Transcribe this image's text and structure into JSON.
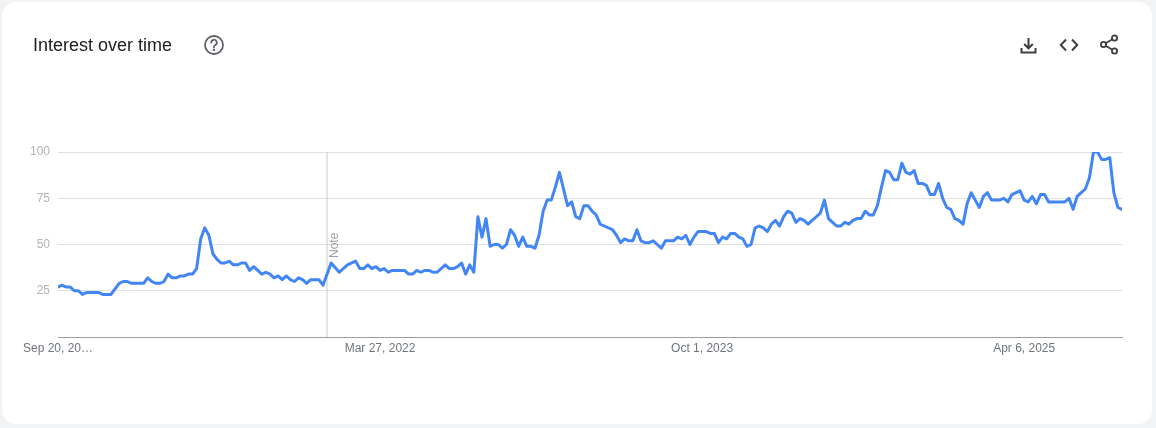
{
  "chart_data": {
    "type": "line",
    "title": "Interest over time",
    "x": [
      "2020-09-20",
      "2020-09-27",
      "2020-10-04",
      "2020-10-11",
      "2020-10-18",
      "2020-10-25",
      "2020-11-01",
      "2020-11-08",
      "2020-11-29",
      "2020-12-06",
      "2020-12-20",
      "2021-01-03",
      "2021-01-10",
      "2021-01-17",
      "2021-01-24",
      "2021-02-14",
      "2021-02-21",
      "2021-02-28",
      "2021-03-07",
      "2021-03-14",
      "2021-03-21",
      "2021-03-28",
      "2021-04-04",
      "2021-04-11",
      "2021-04-18",
      "2021-04-25",
      "2021-05-02",
      "2021-05-09",
      "2021-05-16",
      "2021-05-23",
      "2021-05-30",
      "2021-06-06",
      "2021-06-13",
      "2021-06-20",
      "2021-06-27",
      "2021-07-04",
      "2021-07-11",
      "2021-07-18",
      "2021-07-25",
      "2021-08-01",
      "2021-08-08",
      "2021-08-15",
      "2021-08-22",
      "2021-08-29",
      "2021-09-05",
      "2021-09-12",
      "2021-09-19",
      "2021-09-26",
      "2021-10-03",
      "2021-10-10",
      "2021-10-17",
      "2021-10-24",
      "2021-10-31",
      "2021-11-07",
      "2021-11-14",
      "2021-11-21",
      "2021-11-28",
      "2021-12-12",
      "2021-12-19",
      "2022-01-02",
      "2022-01-16",
      "2022-01-30",
      "2022-02-13",
      "2022-02-20",
      "2022-02-27",
      "2022-03-06",
      "2022-03-13",
      "2022-03-20",
      "2022-03-27",
      "2022-04-03",
      "2022-04-10",
      "2022-04-17",
      "2022-05-08",
      "2022-05-15",
      "2022-05-22",
      "2022-05-29",
      "2022-06-05",
      "2022-06-12",
      "2022-06-19",
      "2022-06-26",
      "2022-07-03",
      "2022-07-17",
      "2022-07-24",
      "2022-07-31",
      "2022-08-07",
      "2022-08-14",
      "2022-08-21",
      "2022-08-28",
      "2022-09-04",
      "2022-09-11",
      "2022-09-18",
      "2022-09-25",
      "2022-10-02",
      "2022-10-09",
      "2022-10-16",
      "2022-10-23",
      "2022-10-30",
      "2022-11-06",
      "2022-11-13",
      "2022-11-20",
      "2022-11-27",
      "2022-12-04",
      "2022-12-11",
      "2022-12-18",
      "2022-12-25",
      "2023-01-01",
      "2023-01-08",
      "2023-01-15",
      "2023-01-22",
      "2023-01-29",
      "2023-02-05",
      "2023-02-12",
      "2023-02-19",
      "2023-02-26",
      "2023-03-05",
      "2023-03-12",
      "2023-03-19",
      "2023-03-26",
      "2023-04-02",
      "2023-04-09",
      "2023-04-16",
      "2023-04-30",
      "2023-05-07",
      "2023-05-14",
      "2023-05-21",
      "2023-05-28",
      "2023-06-04",
      "2023-06-11",
      "2023-06-18",
      "2023-06-25",
      "2023-07-02",
      "2023-07-09",
      "2023-07-16",
      "2023-07-23",
      "2023-07-30",
      "2023-08-06",
      "2023-08-13",
      "2023-08-20",
      "2023-08-27",
      "2023-09-03",
      "2023-09-10",
      "2023-09-17",
      "2023-09-24",
      "2023-10-01",
      "2023-10-08",
      "2023-10-15",
      "2023-10-22",
      "2023-10-29",
      "2023-11-05",
      "2023-11-12",
      "2023-11-19",
      "2023-11-26",
      "2023-12-03",
      "2023-12-10",
      "2023-12-17",
      "2023-12-24",
      "2023-12-31",
      "2024-01-07",
      "2024-01-14",
      "2024-01-21",
      "2024-01-28",
      "2024-02-04",
      "2024-02-11",
      "2024-02-18",
      "2024-02-25",
      "2024-03-03",
      "2024-03-10",
      "2024-03-17",
      "2024-03-24",
      "2024-03-31",
      "2024-04-07",
      "2024-04-14",
      "2024-04-21",
      "2024-04-28",
      "2024-05-05",
      "2024-05-12",
      "2024-05-19",
      "2024-05-26",
      "2024-06-02",
      "2024-06-09",
      "2024-06-16",
      "2024-06-23",
      "2024-06-30",
      "2024-07-07",
      "2024-07-14",
      "2024-07-21",
      "2024-07-28",
      "2024-08-04",
      "2024-08-11",
      "2024-08-18",
      "2024-08-25",
      "2024-09-01",
      "2024-09-08",
      "2024-09-15",
      "2024-09-22",
      "2024-09-29",
      "2024-10-06",
      "2024-10-13",
      "2024-10-20",
      "2024-10-27",
      "2024-11-03",
      "2024-11-10",
      "2024-11-17",
      "2024-11-24",
      "2024-12-01",
      "2024-12-08",
      "2024-12-15",
      "2024-12-22",
      "2024-12-29",
      "2025-01-05",
      "2025-01-12",
      "2025-01-19",
      "2025-01-26",
      "2025-02-02",
      "2025-02-09",
      "2025-02-16",
      "2025-02-23",
      "2025-03-02",
      "2025-03-09",
      "2025-03-16",
      "2025-03-23",
      "2025-03-30",
      "2025-04-06",
      "2025-04-13",
      "2025-04-20",
      "2025-04-27",
      "2025-05-04",
      "2025-05-11",
      "2025-05-18",
      "2025-05-25",
      "2025-06-15",
      "2025-06-22",
      "2025-06-29",
      "2025-07-06",
      "2025-07-13",
      "2025-07-20",
      "2025-07-27",
      "2025-08-03",
      "2025-08-10",
      "2025-08-17",
      "2025-08-24",
      "2025-08-31",
      "2025-09-07",
      "2025-09-14",
      "2025-09-21"
    ],
    "series": [
      {
        "color": "#4285f4",
        "values": [
          27,
          28,
          27,
          27,
          25,
          25,
          23,
          24,
          24,
          23,
          23,
          29,
          30,
          30,
          29,
          29,
          32,
          30,
          29,
          29,
          30,
          34,
          32,
          32,
          33,
          33,
          34,
          34,
          37,
          53,
          59,
          55,
          45,
          42,
          40,
          40,
          41,
          39,
          39,
          40,
          40,
          36,
          38,
          36,
          34,
          35,
          34,
          32,
          33,
          31,
          33,
          31,
          30,
          32,
          31,
          29,
          31,
          31,
          28,
          40,
          35,
          39,
          41,
          37,
          37,
          39,
          37,
          38,
          36,
          37,
          35,
          36,
          36,
          34,
          34,
          36,
          35,
          36,
          36,
          35,
          35,
          39,
          37,
          37,
          38,
          40,
          34,
          39,
          35,
          65,
          54,
          64,
          49,
          50,
          50,
          48,
          50,
          58,
          55,
          49,
          54,
          49,
          49,
          48,
          55,
          68,
          74,
          74,
          81,
          89,
          80,
          71,
          73,
          65,
          64,
          71,
          71,
          68,
          66,
          61,
          60,
          58,
          55,
          51,
          53,
          52,
          52,
          58,
          52,
          51,
          51,
          52,
          50,
          48,
          52,
          52,
          52,
          54,
          53,
          55,
          50,
          54,
          57,
          57,
          57,
          56,
          56,
          51,
          54,
          53,
          56,
          56,
          54,
          53,
          49,
          50,
          59,
          60,
          59,
          57,
          61,
          63,
          60,
          65,
          68,
          67,
          62,
          64,
          63,
          61,
          63,
          65,
          67,
          74,
          64,
          62,
          60,
          60,
          62,
          61,
          63,
          64,
          64,
          68,
          66,
          66,
          71,
          81,
          90,
          89,
          85,
          85,
          94,
          89,
          88,
          90,
          83,
          83,
          82,
          77,
          77,
          83,
          75,
          70,
          69,
          64,
          63,
          61,
          72,
          78,
          74,
          70,
          76,
          78,
          74,
          74,
          74,
          75,
          73,
          77,
          78,
          79,
          74,
          73,
          76,
          72,
          77,
          77,
          73,
          73,
          73,
          75,
          69,
          76,
          78,
          80,
          86,
          100,
          100,
          96,
          96,
          97,
          78,
          70,
          69
        ]
      }
    ],
    "xlim": [
      "2020-09-20",
      "2025-09-21"
    ],
    "xticks": [
      {
        "value": "2020-09-20",
        "label": "Sep 20, 20…"
      },
      {
        "value": "2022-03-27",
        "label": "Mar 27, 2022"
      },
      {
        "value": "2023-10-01",
        "label": "Oct 1, 2023"
      },
      {
        "value": "2025-04-06",
        "label": "Apr 6, 2025"
      }
    ],
    "ylim": [
      0,
      100
    ],
    "yticks": [
      25,
      50,
      75,
      100
    ],
    "grid": "y",
    "legend": false,
    "ref_lines": [
      {
        "axis": "x",
        "value": "2021-12-26",
        "label": "Note",
        "color": "#cccccc"
      }
    ]
  }
}
